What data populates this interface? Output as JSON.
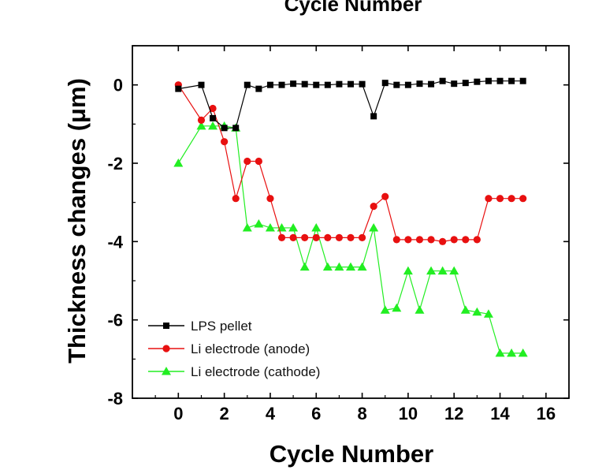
{
  "chart_data": {
    "type": "line",
    "top_title": "Cycle Number",
    "title": "",
    "xlabel": "Cycle Number",
    "ylabel": "Thickness changes (μm)",
    "xlim": [
      -2,
      17
    ],
    "ylim": [
      -8,
      1
    ],
    "xticks": [
      0,
      2,
      4,
      6,
      8,
      10,
      12,
      14,
      16
    ],
    "yticks": [
      0,
      -2,
      -4,
      -6,
      -8
    ],
    "grid": false,
    "legend_position": "bottom-left",
    "series": [
      {
        "name": "LPS pellet",
        "color": "#000000",
        "marker": "square",
        "x": [
          0,
          1,
          1.5,
          2,
          2.5,
          3,
          3.5,
          4,
          4.5,
          5,
          5.5,
          6,
          6.5,
          7,
          7.5,
          8,
          8.5,
          9,
          9.5,
          10,
          10.5,
          11,
          11.5,
          12,
          12.5,
          13,
          13.5,
          14,
          14.5,
          15
        ],
        "y": [
          -0.1,
          0,
          -0.85,
          -1.1,
          -1.1,
          0,
          -0.1,
          0,
          0,
          0.03,
          0.02,
          0,
          0,
          0.02,
          0.02,
          0.02,
          -0.8,
          0.05,
          0,
          0,
          0.03,
          0.02,
          0.1,
          0.03,
          0.05,
          0.08,
          0.1,
          0.1,
          0.1,
          0.1
        ]
      },
      {
        "name": "Li electrode (anode)",
        "color": "#e81010",
        "marker": "circle",
        "x": [
          0,
          1,
          1.5,
          2,
          2.5,
          3,
          3.5,
          4,
          4.5,
          5,
          5.5,
          6,
          6.5,
          7,
          7.5,
          8,
          8.5,
          9,
          9.5,
          10,
          10.5,
          11,
          11.5,
          12,
          12.5,
          13,
          13.5,
          14,
          14.5,
          15
        ],
        "y": [
          0,
          -0.9,
          -0.6,
          -1.45,
          -2.9,
          -1.95,
          -1.95,
          -2.9,
          -3.9,
          -3.9,
          -3.9,
          -3.9,
          -3.9,
          -3.9,
          -3.9,
          -3.9,
          -3.1,
          -2.85,
          -3.95,
          -3.95,
          -3.95,
          -3.95,
          -4.0,
          -3.95,
          -3.95,
          -3.95,
          -2.9,
          -2.9,
          -2.9,
          -2.9
        ]
      },
      {
        "name": "Li electrode (cathode)",
        "color": "#22ee22",
        "marker": "triangle",
        "x": [
          0,
          1,
          1.5,
          2,
          2.5,
          3,
          3.5,
          4,
          4.5,
          5,
          5.5,
          6,
          6.5,
          7,
          7.5,
          8,
          8.5,
          9,
          9.5,
          10,
          10.5,
          11,
          11.5,
          12,
          12.5,
          13,
          13.5,
          14,
          14.5,
          15
        ],
        "y": [
          -2,
          -1.05,
          -1.05,
          -1.05,
          -1.1,
          -3.65,
          -3.55,
          -3.65,
          -3.65,
          -3.65,
          -4.65,
          -3.65,
          -4.65,
          -4.65,
          -4.65,
          -4.65,
          -3.65,
          -5.75,
          -5.7,
          -4.75,
          -5.75,
          -4.75,
          -4.75,
          -4.75,
          -5.75,
          -5.8,
          -5.85,
          -6.85,
          -6.85,
          -6.85
        ]
      }
    ]
  }
}
